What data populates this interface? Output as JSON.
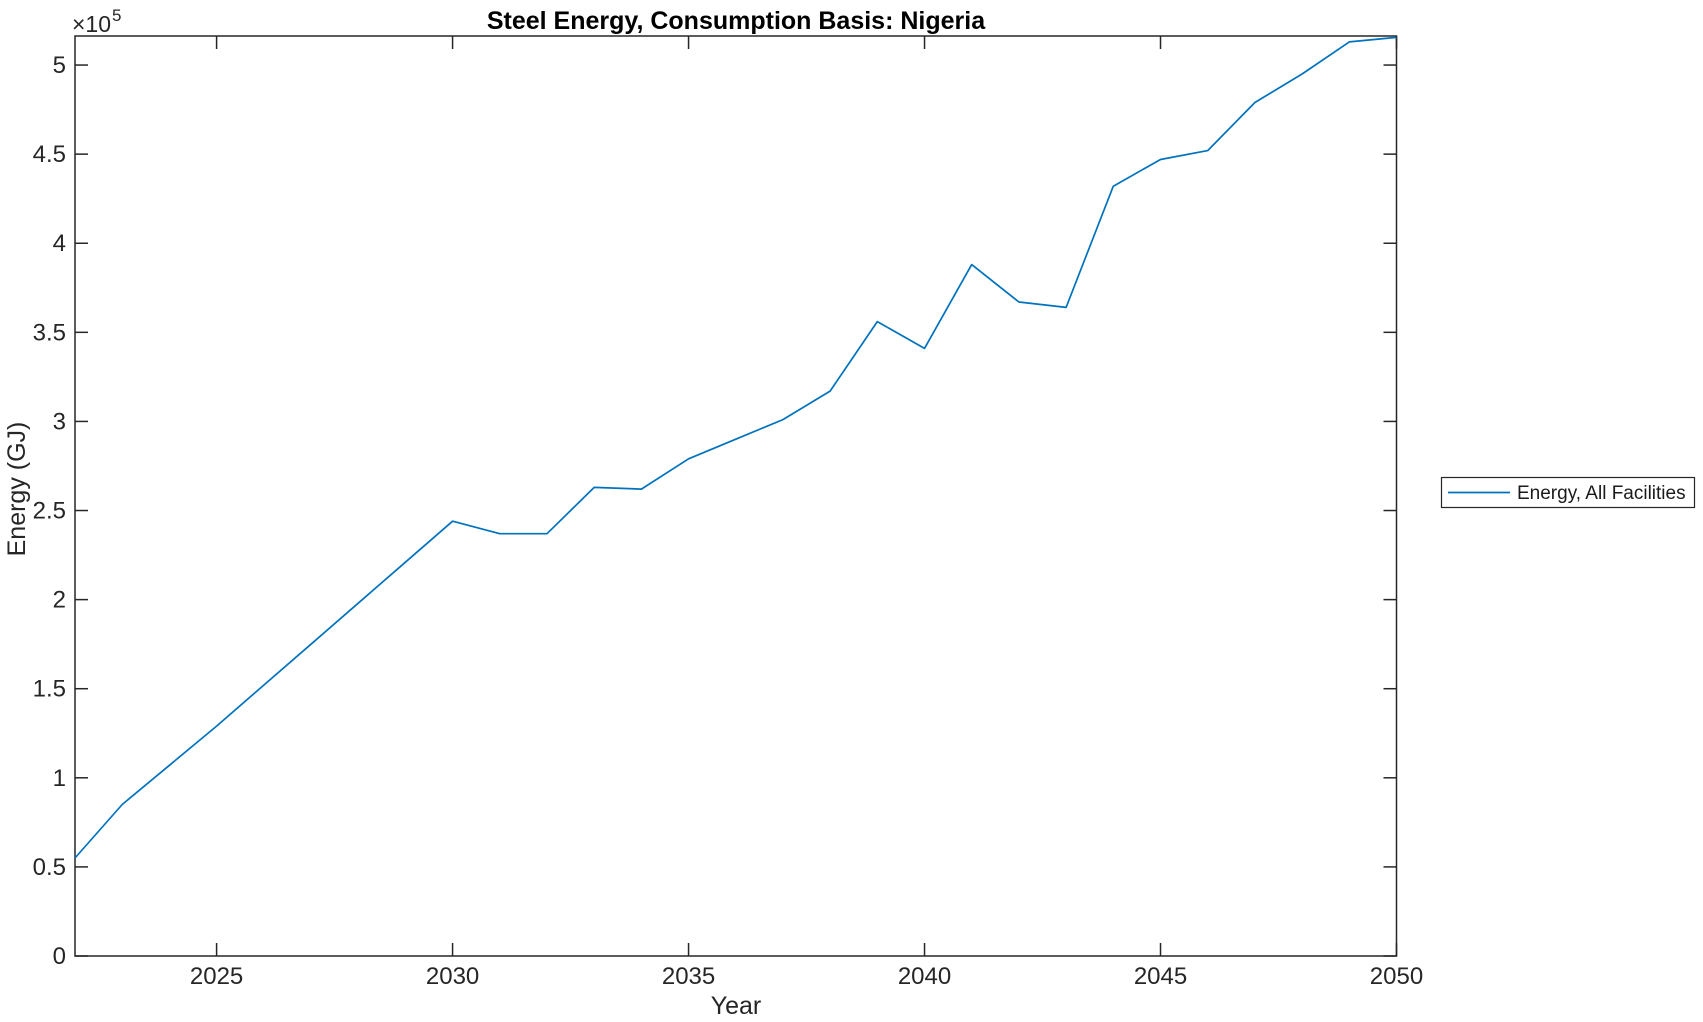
{
  "figure": {
    "background": "#ffffff",
    "title": "Steel Energy, Consumption Basis: Nigeria",
    "xlabel": "Year",
    "ylabel": "Energy (GJ)",
    "y_multiplier_base": "×10",
    "y_multiplier_exponent": "5",
    "axis_color": "#262626",
    "legend": {
      "entries": [
        {
          "label": "Energy, All Facilities",
          "color": "#0072BD"
        }
      ]
    }
  },
  "chart_data": {
    "type": "line",
    "title": "Steel Energy, Consumption Basis: Nigeria",
    "xlabel": "Year",
    "ylabel": "Energy (GJ)",
    "y_axis_multiplier": "×10^5",
    "grid": false,
    "legend_position": "right-outside",
    "tick_direction": "in",
    "axis_color": "#262626",
    "xlim": [
      2022,
      2050
    ],
    "ylim": [
      0,
      516300
    ],
    "xticks": [
      2025,
      2030,
      2035,
      2040,
      2045,
      2050
    ],
    "xtick_labels": [
      "2025",
      "2030",
      "2035",
      "2040",
      "2045",
      "2050"
    ],
    "yticks": [
      0,
      50000,
      100000,
      150000,
      200000,
      250000,
      300000,
      350000,
      400000,
      450000,
      500000
    ],
    "ytick_labels": [
      "0",
      "0.5",
      "1",
      "1.5",
      "2",
      "2.5",
      "3",
      "3.5",
      "4",
      "4.5",
      "5"
    ],
    "x": [
      2022,
      2023,
      2024,
      2025,
      2026,
      2027,
      2028,
      2029,
      2030,
      2031,
      2032,
      2033,
      2034,
      2035,
      2036,
      2037,
      2038,
      2039,
      2040,
      2041,
      2042,
      2043,
      2044,
      2045,
      2046,
      2047,
      2048,
      2049,
      2050
    ],
    "series": [
      {
        "name": "Energy, All Facilities",
        "color": "#0072BD",
        "values": [
          55000,
          85000,
          107000,
          129000,
          152000,
          175000,
          198000,
          221000,
          244000,
          237000,
          237000,
          263000,
          262000,
          279000,
          290000,
          301000,
          317000,
          356000,
          341000,
          388000,
          367000,
          364000,
          432000,
          447000,
          452000,
          479000,
          495000,
          513000,
          515500
        ]
      }
    ]
  }
}
